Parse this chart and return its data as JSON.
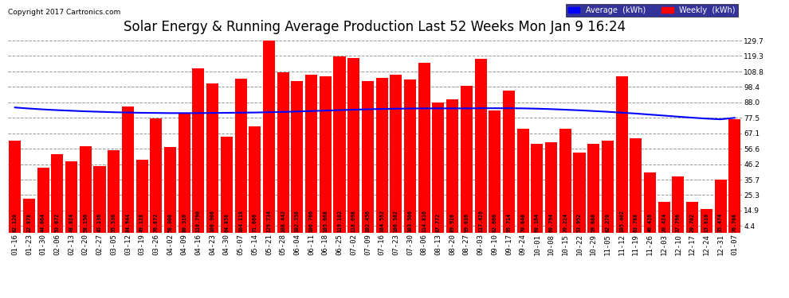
{
  "title": "Solar Energy & Running Average Production Last 52 Weeks Mon Jan 9 16:24",
  "copyright": "Copyright 2017 Cartronics.com",
  "ylabel_right_ticks": [
    4.4,
    14.9,
    25.3,
    35.7,
    46.2,
    56.6,
    67.1,
    77.5,
    88.0,
    98.4,
    108.8,
    119.3,
    129.7
  ],
  "categories": [
    "01-16",
    "01-23",
    "01-30",
    "02-06",
    "02-13",
    "02-20",
    "02-27",
    "03-05",
    "03-12",
    "03-19",
    "03-26",
    "04-02",
    "04-09",
    "04-16",
    "04-23",
    "04-30",
    "05-07",
    "05-14",
    "05-21",
    "05-28",
    "06-04",
    "06-11",
    "06-18",
    "06-25",
    "07-02",
    "07-09",
    "07-16",
    "07-23",
    "07-30",
    "08-06",
    "08-13",
    "08-20",
    "08-27",
    "09-03",
    "09-10",
    "09-17",
    "09-24",
    "10-01",
    "10-08",
    "10-15",
    "10-22",
    "10-29",
    "11-05",
    "11-12",
    "11-19",
    "11-26",
    "12-03",
    "12-10",
    "12-17",
    "12-24",
    "12-31",
    "01-07"
  ],
  "weekly_values": [
    62.12,
    22.878,
    44.064,
    53.072,
    48.024,
    58.15,
    45.136,
    55.536,
    84.944,
    49.128,
    76.872,
    58.008,
    80.31,
    110.79,
    100.906,
    64.858,
    104.118,
    71.606,
    129.734,
    108.442,
    102.358,
    106.766,
    105.668,
    119.102,
    118.098,
    102.456,
    104.592,
    106.502,
    103.506,
    114.816,
    87.772,
    89.926,
    99.036,
    117.426,
    82.606,
    95.714,
    70.04,
    60.164,
    60.794,
    70.224,
    53.952,
    59.68,
    62.27,
    105.402,
    63.788,
    40.426,
    20.424,
    37.796,
    20.702,
    15.81,
    35.474,
    76.708
  ],
  "avg_values": [
    84.5,
    83.8,
    83.2,
    82.7,
    82.3,
    81.9,
    81.6,
    81.3,
    81.1,
    80.9,
    80.8,
    80.7,
    80.7,
    80.7,
    80.8,
    80.9,
    81.0,
    81.1,
    81.3,
    81.5,
    81.8,
    82.1,
    82.4,
    82.7,
    83.0,
    83.3,
    83.5,
    83.7,
    83.8,
    83.9,
    83.9,
    83.9,
    83.9,
    84.0,
    84.0,
    84.0,
    83.9,
    83.7,
    83.4,
    83.0,
    82.6,
    82.1,
    81.6,
    81.0,
    80.4,
    79.7,
    79.0,
    78.3,
    77.6,
    77.0,
    76.5,
    77.5
  ],
  "bar_labels": [
    "62.120",
    "22.878",
    "44.064",
    "53.072",
    "48.024",
    "58.150",
    "45.136",
    "55.536",
    "84.944",
    "49.128",
    "76.872",
    "58.008",
    "80.310",
    "110.790",
    "100.906",
    "64.858",
    "104.118",
    "71.606",
    "129.734",
    "108.442",
    "102.358",
    "106.766",
    "105.668",
    "119.102",
    "118.098",
    "102.456",
    "104.592",
    "106.502",
    "103.506",
    "114.816",
    "87.772",
    "89.926",
    "99.036",
    "117.426",
    "82.606",
    "95.714",
    "70.040",
    "60.164",
    "60.794",
    "70.224",
    "53.952",
    "59.680",
    "62.270",
    "105.402",
    "63.788",
    "40.426",
    "20.424",
    "37.796",
    "20.702",
    "15.810",
    "35.474",
    "76.708"
  ],
  "bar_color": "#ff0000",
  "line_color": "#0000ff",
  "background_color": "#ffffff",
  "plot_bg_color": "#ffffff",
  "grid_color": "#999999",
  "title_fontsize": 12,
  "tick_fontsize": 6.5,
  "bar_label_fontsize": 4.8,
  "legend_avg_color": "#0000ff",
  "legend_weekly_color": "#ff0000",
  "ymin": 0,
  "ymax": 133
}
